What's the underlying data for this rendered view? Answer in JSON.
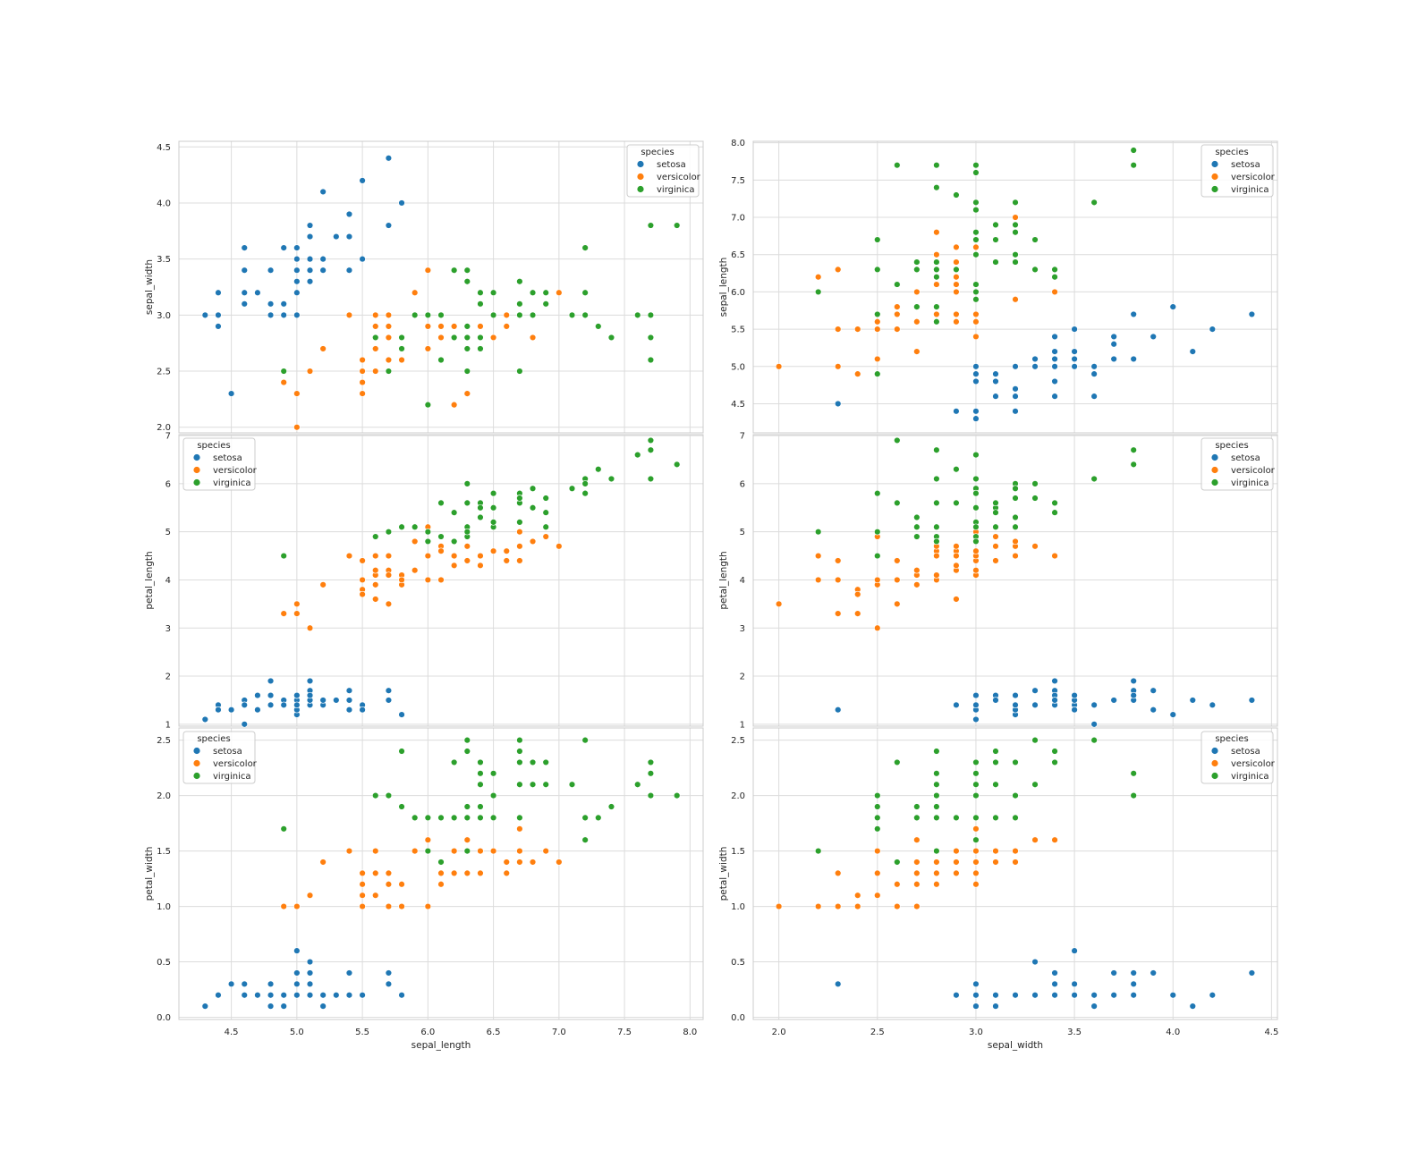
{
  "figure": {
    "legend_title": "species",
    "species": [
      {
        "name": "setosa",
        "color": "#1f77b4"
      },
      {
        "name": "versicolor",
        "color": "#ff7f0e"
      },
      {
        "name": "virginica",
        "color": "#2ca02c"
      }
    ]
  },
  "chart_data": [
    {
      "id": "sl-sw",
      "type": "scatter",
      "xkey": "sepal_length",
      "ykey": "sepal_width",
      "xlabel": "",
      "ylabel": "sepal_width",
      "xlim": [
        4.1,
        8.1
      ],
      "ylim": [
        1.95,
        4.55
      ],
      "yticks": [
        "2.0",
        "2.5",
        "3.0",
        "3.5",
        "4.0",
        "4.5"
      ],
      "legend": "top-right",
      "grid": true
    },
    {
      "id": "sw-sl",
      "type": "scatter",
      "xkey": "sepal_width",
      "ykey": "sepal_length",
      "xlabel": "",
      "ylabel": "sepal_length",
      "xlim": [
        1.87,
        4.53
      ],
      "ylim": [
        4.11,
        8.02
      ],
      "yticks": [
        "4.5",
        "5.0",
        "5.5",
        "6.0",
        "6.5",
        "7.0",
        "7.5",
        "8.0"
      ],
      "legend": "top-right",
      "grid": true
    },
    {
      "id": "sl-pl",
      "type": "scatter",
      "xkey": "sepal_length",
      "ykey": "petal_length",
      "xlabel": "",
      "ylabel": "petal_length",
      "xlim": [
        4.1,
        8.1
      ],
      "ylim": [
        0.96,
        7.02
      ],
      "yticks": [
        "1",
        "2",
        "3",
        "4",
        "5",
        "6",
        "7"
      ],
      "legend": "top-left",
      "grid": true
    },
    {
      "id": "sw-pl",
      "type": "scatter",
      "xkey": "sepal_width",
      "ykey": "petal_length",
      "xlabel": "",
      "ylabel": "petal_length",
      "xlim": [
        1.87,
        4.53
      ],
      "ylim": [
        0.96,
        7.02
      ],
      "yticks": [
        "1",
        "2",
        "3",
        "4",
        "5",
        "6",
        "7"
      ],
      "legend": "top-right",
      "grid": true
    },
    {
      "id": "sl-pw",
      "type": "scatter",
      "xkey": "sepal_length",
      "ykey": "petal_width",
      "xlabel": "sepal_length",
      "ylabel": "petal_width",
      "xlim": [
        4.1,
        8.1
      ],
      "ylim": [
        -0.02,
        2.61
      ],
      "xticks": [
        "4.5",
        "5.0",
        "5.5",
        "6.0",
        "6.5",
        "7.0",
        "7.5",
        "8.0"
      ],
      "yticks": [
        "0.0",
        "0.5",
        "1.0",
        "1.5",
        "2.0",
        "2.5"
      ],
      "legend": "top-left",
      "grid": true
    },
    {
      "id": "sw-pw",
      "type": "scatter",
      "xkey": "sepal_width",
      "ykey": "petal_width",
      "xlabel": "sepal_width",
      "ylabel": "petal_width",
      "xlim": [
        1.87,
        4.53
      ],
      "ylim": [
        -0.02,
        2.61
      ],
      "xticks": [
        "2.0",
        "2.5",
        "3.0",
        "3.5",
        "4.0",
        "4.5"
      ],
      "yticks": [
        "0.0",
        "0.5",
        "1.0",
        "1.5",
        "2.0",
        "2.5"
      ],
      "legend": "top-right",
      "grid": true
    }
  ],
  "iris": {
    "setosa": [
      [
        5.1,
        3.5,
        1.4,
        0.2
      ],
      [
        4.9,
        3.0,
        1.4,
        0.2
      ],
      [
        4.7,
        3.2,
        1.3,
        0.2
      ],
      [
        4.6,
        3.1,
        1.5,
        0.2
      ],
      [
        5.0,
        3.6,
        1.4,
        0.2
      ],
      [
        5.4,
        3.9,
        1.7,
        0.4
      ],
      [
        4.6,
        3.4,
        1.4,
        0.3
      ],
      [
        5.0,
        3.4,
        1.5,
        0.2
      ],
      [
        4.4,
        2.9,
        1.4,
        0.2
      ],
      [
        4.9,
        3.1,
        1.5,
        0.1
      ],
      [
        5.4,
        3.7,
        1.5,
        0.2
      ],
      [
        4.8,
        3.4,
        1.6,
        0.2
      ],
      [
        4.8,
        3.0,
        1.4,
        0.1
      ],
      [
        4.3,
        3.0,
        1.1,
        0.1
      ],
      [
        5.8,
        4.0,
        1.2,
        0.2
      ],
      [
        5.7,
        4.4,
        1.5,
        0.4
      ],
      [
        5.4,
        3.9,
        1.3,
        0.4
      ],
      [
        5.1,
        3.5,
        1.4,
        0.3
      ],
      [
        5.7,
        3.8,
        1.7,
        0.3
      ],
      [
        5.1,
        3.8,
        1.5,
        0.3
      ],
      [
        5.4,
        3.4,
        1.7,
        0.2
      ],
      [
        5.1,
        3.7,
        1.5,
        0.4
      ],
      [
        4.6,
        3.6,
        1.0,
        0.2
      ],
      [
        5.1,
        3.3,
        1.7,
        0.5
      ],
      [
        4.8,
        3.4,
        1.9,
        0.2
      ],
      [
        5.0,
        3.0,
        1.6,
        0.2
      ],
      [
        5.0,
        3.4,
        1.6,
        0.4
      ],
      [
        5.2,
        3.5,
        1.5,
        0.2
      ],
      [
        5.2,
        3.4,
        1.4,
        0.2
      ],
      [
        4.7,
        3.2,
        1.6,
        0.2
      ],
      [
        4.8,
        3.1,
        1.6,
        0.2
      ],
      [
        5.4,
        3.4,
        1.5,
        0.4
      ],
      [
        5.2,
        4.1,
        1.5,
        0.1
      ],
      [
        5.5,
        4.2,
        1.4,
        0.2
      ],
      [
        4.9,
        3.1,
        1.5,
        0.2
      ],
      [
        5.0,
        3.2,
        1.2,
        0.2
      ],
      [
        5.5,
        3.5,
        1.3,
        0.2
      ],
      [
        4.9,
        3.6,
        1.4,
        0.1
      ],
      [
        4.4,
        3.0,
        1.3,
        0.2
      ],
      [
        5.1,
        3.4,
        1.5,
        0.2
      ],
      [
        5.0,
        3.5,
        1.3,
        0.3
      ],
      [
        4.5,
        2.3,
        1.3,
        0.3
      ],
      [
        4.4,
        3.2,
        1.3,
        0.2
      ],
      [
        5.0,
        3.5,
        1.6,
        0.6
      ],
      [
        5.1,
        3.8,
        1.9,
        0.4
      ],
      [
        4.8,
        3.0,
        1.4,
        0.3
      ],
      [
        5.1,
        3.8,
        1.6,
        0.2
      ],
      [
        4.6,
        3.2,
        1.4,
        0.2
      ],
      [
        5.3,
        3.7,
        1.5,
        0.2
      ],
      [
        5.0,
        3.3,
        1.4,
        0.2
      ]
    ],
    "versicolor": [
      [
        7.0,
        3.2,
        4.7,
        1.4
      ],
      [
        6.4,
        3.2,
        4.5,
        1.5
      ],
      [
        6.9,
        3.1,
        4.9,
        1.5
      ],
      [
        5.5,
        2.3,
        4.0,
        1.3
      ],
      [
        6.5,
        2.8,
        4.6,
        1.5
      ],
      [
        5.7,
        2.8,
        4.5,
        1.3
      ],
      [
        6.3,
        3.3,
        4.7,
        1.6
      ],
      [
        4.9,
        2.4,
        3.3,
        1.0
      ],
      [
        6.6,
        2.9,
        4.6,
        1.3
      ],
      [
        5.2,
        2.7,
        3.9,
        1.4
      ],
      [
        5.0,
        2.0,
        3.5,
        1.0
      ],
      [
        5.9,
        3.0,
        4.2,
        1.5
      ],
      [
        6.0,
        2.2,
        4.0,
        1.0
      ],
      [
        6.1,
        2.9,
        4.7,
        1.4
      ],
      [
        5.6,
        2.9,
        3.6,
        1.3
      ],
      [
        6.7,
        3.1,
        4.4,
        1.4
      ],
      [
        5.6,
        3.0,
        4.5,
        1.5
      ],
      [
        5.8,
        2.7,
        4.1,
        1.0
      ],
      [
        6.2,
        2.2,
        4.5,
        1.5
      ],
      [
        5.6,
        2.5,
        3.9,
        1.1
      ],
      [
        5.9,
        3.2,
        4.8,
        1.8
      ],
      [
        6.1,
        2.8,
        4.0,
        1.3
      ],
      [
        6.3,
        2.5,
        4.9,
        1.5
      ],
      [
        6.1,
        2.8,
        4.7,
        1.2
      ],
      [
        6.4,
        2.9,
        4.3,
        1.3
      ],
      [
        6.6,
        3.0,
        4.4,
        1.4
      ],
      [
        6.8,
        2.8,
        4.8,
        1.4
      ],
      [
        6.7,
        3.0,
        5.0,
        1.7
      ],
      [
        6.0,
        2.9,
        4.5,
        1.5
      ],
      [
        5.7,
        2.6,
        3.5,
        1.0
      ],
      [
        5.5,
        2.4,
        3.8,
        1.1
      ],
      [
        5.5,
        2.4,
        3.7,
        1.0
      ],
      [
        5.8,
        2.7,
        3.9,
        1.2
      ],
      [
        6.0,
        2.7,
        5.1,
        1.6
      ],
      [
        5.4,
        3.0,
        4.5,
        1.5
      ],
      [
        6.0,
        3.4,
        4.5,
        1.6
      ],
      [
        6.7,
        3.1,
        4.7,
        1.5
      ],
      [
        6.3,
        2.3,
        4.4,
        1.3
      ],
      [
        5.6,
        3.0,
        4.1,
        1.3
      ],
      [
        5.5,
        2.5,
        4.0,
        1.3
      ],
      [
        5.5,
        2.6,
        4.4,
        1.2
      ],
      [
        6.1,
        3.0,
        4.6,
        1.4
      ],
      [
        5.8,
        2.6,
        4.0,
        1.2
      ],
      [
        5.0,
        2.3,
        3.3,
        1.0
      ],
      [
        5.6,
        2.7,
        4.2,
        1.3
      ],
      [
        5.7,
        3.0,
        4.2,
        1.2
      ],
      [
        5.7,
        2.9,
        4.2,
        1.3
      ],
      [
        6.2,
        2.9,
        4.3,
        1.3
      ],
      [
        5.1,
        2.5,
        3.0,
        1.1
      ],
      [
        5.7,
        2.8,
        4.1,
        1.3
      ]
    ],
    "virginica": [
      [
        6.3,
        3.3,
        6.0,
        2.5
      ],
      [
        5.8,
        2.7,
        5.1,
        1.9
      ],
      [
        7.1,
        3.0,
        5.9,
        2.1
      ],
      [
        6.3,
        2.9,
        5.6,
        1.8
      ],
      [
        6.5,
        3.0,
        5.8,
        2.2
      ],
      [
        7.6,
        3.0,
        6.6,
        2.1
      ],
      [
        4.9,
        2.5,
        4.5,
        1.7
      ],
      [
        7.3,
        2.9,
        6.3,
        1.8
      ],
      [
        6.7,
        2.5,
        5.8,
        1.8
      ],
      [
        7.2,
        3.6,
        6.1,
        2.5
      ],
      [
        6.5,
        3.2,
        5.1,
        2.0
      ],
      [
        6.4,
        2.7,
        5.3,
        1.9
      ],
      [
        6.8,
        3.0,
        5.5,
        2.1
      ],
      [
        5.7,
        2.5,
        5.0,
        2.0
      ],
      [
        5.8,
        2.8,
        5.1,
        2.4
      ],
      [
        6.4,
        3.2,
        5.3,
        2.3
      ],
      [
        6.5,
        3.0,
        5.5,
        1.8
      ],
      [
        7.7,
        3.8,
        6.7,
        2.2
      ],
      [
        7.7,
        2.6,
        6.9,
        2.3
      ],
      [
        6.0,
        2.2,
        5.0,
        1.5
      ],
      [
        6.9,
        3.2,
        5.7,
        2.3
      ],
      [
        5.6,
        2.8,
        4.9,
        2.0
      ],
      [
        7.7,
        2.8,
        6.7,
        2.0
      ],
      [
        6.3,
        2.7,
        4.9,
        1.8
      ],
      [
        6.7,
        3.3,
        5.7,
        2.1
      ],
      [
        7.2,
        3.2,
        6.0,
        1.8
      ],
      [
        6.2,
        2.8,
        4.8,
        1.8
      ],
      [
        6.1,
        3.0,
        4.9,
        1.8
      ],
      [
        6.4,
        2.8,
        5.6,
        2.1
      ],
      [
        7.2,
        3.0,
        5.8,
        1.6
      ],
      [
        7.4,
        2.8,
        6.1,
        1.9
      ],
      [
        7.9,
        3.8,
        6.4,
        2.0
      ],
      [
        6.4,
        2.8,
        5.6,
        2.2
      ],
      [
        6.3,
        2.8,
        5.1,
        1.5
      ],
      [
        6.1,
        2.6,
        5.6,
        1.4
      ],
      [
        7.7,
        3.0,
        6.1,
        2.3
      ],
      [
        6.3,
        3.4,
        5.6,
        2.4
      ],
      [
        6.4,
        3.1,
        5.5,
        1.8
      ],
      [
        6.0,
        3.0,
        4.8,
        1.8
      ],
      [
        6.9,
        3.1,
        5.4,
        2.1
      ],
      [
        6.7,
        3.1,
        5.6,
        2.4
      ],
      [
        6.9,
        3.1,
        5.1,
        2.3
      ],
      [
        5.8,
        2.7,
        5.1,
        1.9
      ],
      [
        6.8,
        3.2,
        5.9,
        2.3
      ],
      [
        6.7,
        3.3,
        5.7,
        2.5
      ],
      [
        6.7,
        3.0,
        5.2,
        2.3
      ],
      [
        6.3,
        2.5,
        5.0,
        1.9
      ],
      [
        6.5,
        3.0,
        5.2,
        2.0
      ],
      [
        6.2,
        3.4,
        5.4,
        2.3
      ],
      [
        5.9,
        3.0,
        5.1,
        1.8
      ]
    ]
  }
}
